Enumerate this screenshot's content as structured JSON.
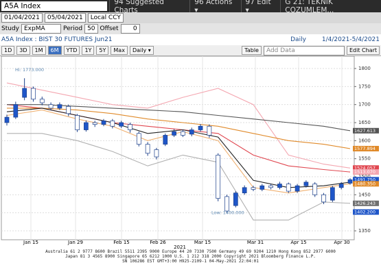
{
  "toolbar": {
    "ticker": "A5A Index",
    "menu": [
      "94 Suggested Charts",
      "96 Actions ▾",
      "97 Edit ▾"
    ],
    "page_title": "G 21: TEKNIK COZUMLEM...",
    "start_date": "01/04/2021",
    "end_date": "05/04/2021",
    "currency": "Local CCY",
    "study_label": "Study",
    "study": "ExpMA",
    "period_label": "Period",
    "period": "50",
    "offset_label": "Offset",
    "offset": "0",
    "security": "A5A Index : BIST 30 FUTURES  Jun21",
    "frequency": "Daily",
    "range": "1/4/2021-5/4/2021",
    "buttons": [
      "1D",
      "3D",
      "1M",
      "6M",
      "YTD",
      "1Y",
      "5Y",
      "Max",
      "Daily ▾"
    ],
    "table": "Table",
    "add_data": "Add Data",
    "edit_chart": "Edit Chart"
  },
  "chart_data": {
    "type": "candlestick",
    "open": [
      1650,
      1665,
      1720,
      1745,
      1715,
      1700,
      1690,
      1695,
      1670,
      1630,
      1650,
      1645,
      1655,
      1640,
      1645,
      1620,
      1590,
      1575,
      1590,
      1615,
      1625,
      1618,
      1630,
      1640,
      1560,
      1445,
      1420,
      1455,
      1470,
      1465,
      1475,
      1470,
      1480,
      1460,
      1475,
      1480,
      1450,
      1435,
      1470,
      1482
    ],
    "high": [
      1672,
      1708,
      1773,
      1750,
      1722,
      1706,
      1706,
      1700,
      1674,
      1656,
      1655,
      1660,
      1660,
      1655,
      1650,
      1625,
      1596,
      1580,
      1620,
      1632,
      1630,
      1636,
      1646,
      1645,
      1565,
      1450,
      1460,
      1476,
      1475,
      1480,
      1480,
      1486,
      1484,
      1480,
      1490,
      1485,
      1455,
      1475,
      1485,
      1496
    ],
    "low": [
      1642,
      1660,
      1712,
      1708,
      1698,
      1684,
      1685,
      1668,
      1624,
      1625,
      1638,
      1640,
      1634,
      1635,
      1622,
      1584,
      1558,
      1548,
      1585,
      1610,
      1610,
      1612,
      1625,
      1608,
      1432,
      1400,
      1415,
      1450,
      1460,
      1460,
      1465,
      1465,
      1455,
      1455,
      1470,
      1444,
      1424,
      1430,
      1465,
      1478
    ],
    "close": [
      1665,
      1700,
      1745,
      1715,
      1705,
      1690,
      1700,
      1675,
      1630,
      1650,
      1645,
      1655,
      1640,
      1650,
      1630,
      1590,
      1565,
      1555,
      1615,
      1625,
      1615,
      1630,
      1640,
      1615,
      1440,
      1405,
      1455,
      1470,
      1465,
      1475,
      1470,
      1480,
      1460,
      1475,
      1485,
      1450,
      1430,
      1470,
      1480,
      1491.75
    ],
    "up_color": "#1f56c8",
    "down_color": "#ffffff",
    "line_x": [
      0,
      4,
      8,
      12,
      16,
      20,
      24,
      28,
      32,
      36,
      39
    ],
    "series": [
      {
        "color": "#f4a6b0",
        "values": [
          1760,
          1740,
          1720,
          1700,
          1690,
          1720,
          1745,
          1700,
          1560,
          1535,
          1524.057
        ]
      },
      {
        "color": "#e0464f",
        "values": [
          1700,
          1690,
          1670,
          1650,
          1640,
          1630,
          1620,
          1560,
          1530,
          1520,
          1513.07
        ]
      },
      {
        "color": "#555555",
        "values": [
          1700,
          1700,
          1695,
          1690,
          1685,
          1680,
          1670,
          1660,
          1650,
          1640,
          1627.613
        ]
      },
      {
        "color": "#e08a2a",
        "values": [
          1690,
          1690,
          1685,
          1675,
          1660,
          1650,
          1640,
          1620,
          1600,
          1590,
          1577.894
        ]
      },
      {
        "color": "#f0b070",
        "values": [
          1670,
          1685,
          1660,
          1640,
          1600,
          1625,
          1600,
          1470,
          1455,
          1470,
          1480.35
        ]
      },
      {
        "color": "#222222",
        "values": [
          1680,
          1690,
          1670,
          1650,
          1620,
          1630,
          1610,
          1490,
          1470,
          1475,
          1485
        ]
      },
      {
        "color": "#b0b0b0",
        "values": [
          1620,
          1620,
          1600,
          1570,
          1530,
          1560,
          1540,
          1380,
          1380,
          1430,
          1426.243
        ]
      }
    ],
    "price_tags": [
      {
        "value": 1627.613,
        "label": "1627.613",
        "color": "#555555"
      },
      {
        "value": 1577.894,
        "label": "1577.894",
        "color": "#e08a2a"
      },
      {
        "value": 1524.057,
        "label": "1524.057",
        "color": "#e0464f"
      },
      {
        "value": 1513.07,
        "label": "1513.070",
        "color": "#f4a6b0"
      },
      {
        "value": 1491.75,
        "label": "1491.750",
        "color": "#1f56c8"
      },
      {
        "value": 1480.35,
        "label": "1480.350",
        "color": "#e08a2a"
      },
      {
        "value": 1426.243,
        "label": "1426.243",
        "color": "#707070"
      },
      {
        "value": 1402.2,
        "label": "1402.200",
        "color": "#1f56c8"
      }
    ],
    "annotations": [
      "Hi: 1773.000",
      "Low: 1400.000"
    ],
    "x_labels": [
      "Jan 15",
      "Jan 29",
      "Feb 15",
      "Feb 26",
      "Mar 15",
      "Mar 31",
      "Apr 15",
      "Apr 30"
    ],
    "year_label": "2021",
    "ylim": [
      1350,
      1800
    ],
    "yticks": [
      1350,
      1400,
      1450,
      1500,
      1550,
      1600,
      1650,
      1700,
      1750,
      1800
    ],
    "grid": true
  },
  "footer": [
    "Australia 61 2 9777 8600 Brazil 5511 2395 9000 Europe 44 20 7330 7500 Germany 49 69 9204 1210 Hong Kong 852 2977 6000",
    "Japan 81 3 4565 8900       Singapore 65 6212 1000       U.S. 1 212 318 2000     Copyright 2021 Bloomberg Finance L.P.",
    "SN 106286 EST  GMT+3:00 H925-2109-1 04-May-2021 22:04:01"
  ]
}
